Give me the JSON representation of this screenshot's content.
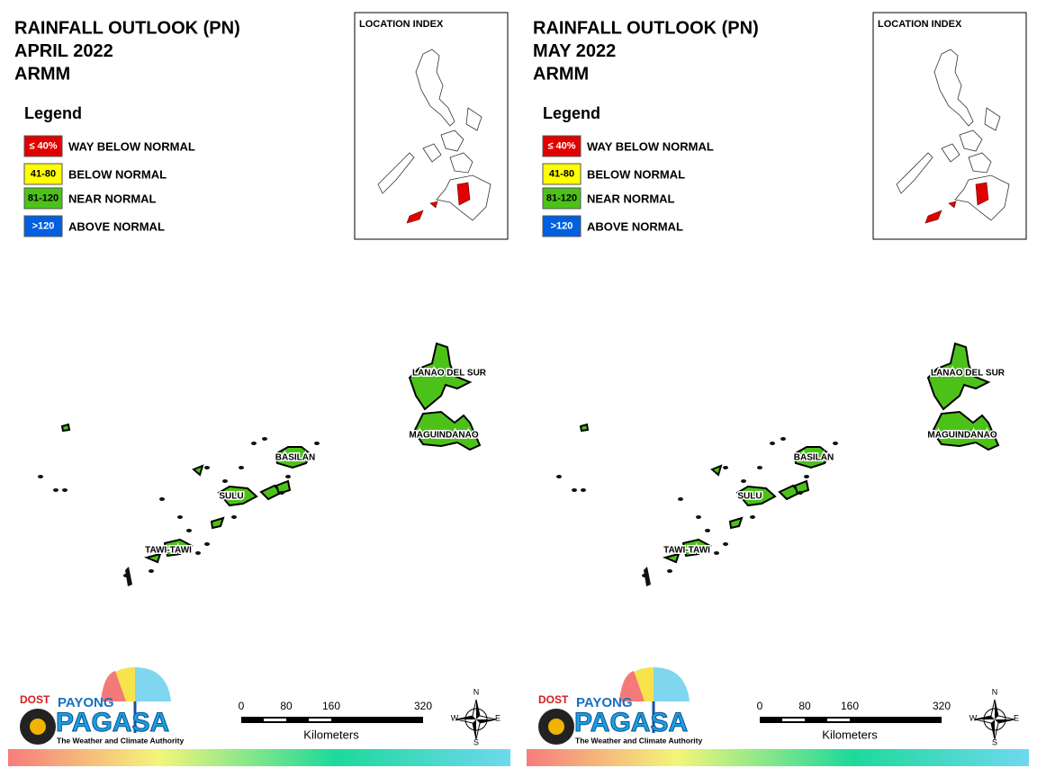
{
  "panels": [
    {
      "title": [
        "RAINFALL OUTLOOK (PN)",
        "APRIL 2022",
        "ARMM"
      ],
      "legend_title": "Legend",
      "legend": [
        {
          "code": "≤ 40%",
          "label": "WAY BELOW NORMAL",
          "color": "#e00000",
          "text_color": "#ffffff"
        },
        {
          "code": "41-80",
          "label": "BELOW NORMAL",
          "color": "#ffff00",
          "text_color": "#000000"
        },
        {
          "code": "81-120",
          "label": "NEAR NORMAL",
          "color": "#4cc219",
          "text_color": "#000000"
        },
        {
          "code": ">120",
          "label": "ABOVE NORMAL",
          "color": "#0060e0",
          "text_color": "#ffffff"
        }
      ],
      "location_index": "LOCATION INDEX",
      "regions": [
        "LANAO DEL SUR",
        "MAGUINDANAO",
        "BASILAN",
        "SULU",
        "TAWI-TAWI"
      ],
      "logo": {
        "agency": "DOST",
        "brand": "PAYONG",
        "name": "PAGASA",
        "tagline": "The Weather and Climate Authority"
      },
      "scale": {
        "ticks": [
          "0",
          "80",
          "160",
          "320"
        ],
        "unit": "Kilometers"
      },
      "compass": [
        "N",
        "E",
        "S",
        "W"
      ]
    },
    {
      "title": [
        "RAINFALL OUTLOOK (PN)",
        "MAY 2022",
        "ARMM"
      ],
      "legend_title": "Legend",
      "legend": [
        {
          "code": "≤ 40%",
          "label": "WAY BELOW NORMAL",
          "color": "#e00000",
          "text_color": "#ffffff"
        },
        {
          "code": "41-80",
          "label": "BELOW NORMAL",
          "color": "#ffff00",
          "text_color": "#000000"
        },
        {
          "code": "81-120",
          "label": "NEAR NORMAL",
          "color": "#4cc219",
          "text_color": "#000000"
        },
        {
          "code": ">120",
          "label": "ABOVE NORMAL",
          "color": "#0060e0",
          "text_color": "#ffffff"
        }
      ],
      "location_index": "LOCATION INDEX",
      "regions": [
        "LANAO DEL SUR",
        "MAGUINDANAO",
        "BASILAN",
        "SULU",
        "TAWI-TAWI"
      ],
      "logo": {
        "agency": "DOST",
        "brand": "PAYONG",
        "name": "PAGASA",
        "tagline": "The Weather and Climate Authority"
      },
      "scale": {
        "ticks": [
          "0",
          "80",
          "160",
          "320"
        ],
        "unit": "Kilometers"
      },
      "compass": [
        "N",
        "E",
        "S",
        "W"
      ]
    }
  ]
}
